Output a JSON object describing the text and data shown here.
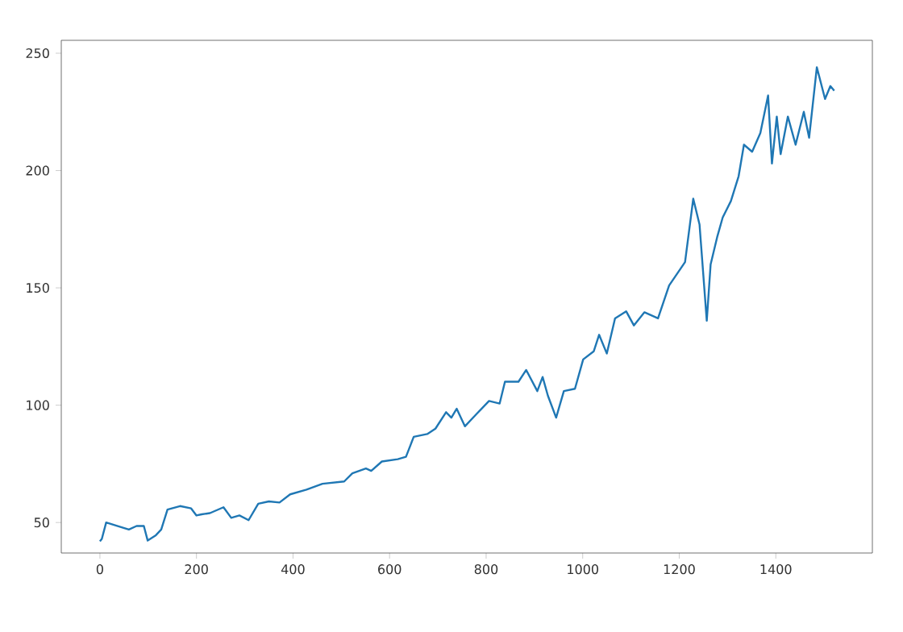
{
  "chart_data": {
    "type": "line",
    "color": "#1f77b4",
    "x": [
      0,
      4,
      13,
      37,
      60,
      76,
      91,
      99,
      116,
      127,
      140,
      166,
      189,
      200,
      211,
      228,
      256,
      272,
      289,
      308,
      328,
      350,
      372,
      394,
      428,
      461,
      506,
      523,
      551,
      562,
      584,
      617,
      634,
      650,
      678,
      695,
      717,
      728,
      739,
      756,
      779,
      806,
      828,
      839,
      867,
      883,
      906,
      917,
      928,
      945,
      961,
      984,
      1001,
      1023,
      1034,
      1050,
      1067,
      1090,
      1106,
      1128,
      1156,
      1179,
      1212,
      1229,
      1242,
      1257,
      1265,
      1279,
      1290,
      1307,
      1323,
      1334,
      1351,
      1368,
      1384,
      1392,
      1402,
      1410,
      1425,
      1441,
      1458,
      1469,
      1485,
      1502,
      1513,
      1521
    ],
    "values": [
      42,
      43,
      50,
      48.5,
      47,
      48.5,
      48.5,
      42.3,
      44.6,
      47,
      55.5,
      57,
      56,
      53,
      53.5,
      54,
      56.5,
      52,
      53,
      51,
      58,
      59,
      58.5,
      62,
      64,
      66.5,
      67.5,
      71,
      73,
      72,
      76,
      77,
      78,
      86.5,
      87.7,
      90,
      97,
      94.7,
      98.5,
      91,
      96,
      101.8,
      100.7,
      110,
      110,
      115,
      106,
      112,
      104,
      94.7,
      106,
      107,
      119.5,
      123,
      130,
      122,
      137,
      140,
      134,
      139.6,
      137,
      151,
      161,
      188,
      177,
      136,
      160,
      172,
      180,
      187,
      197.6,
      211,
      208,
      216,
      232,
      203,
      223,
      207,
      223,
      211,
      225,
      214,
      244,
      230.5,
      236,
      234
    ],
    "xlim": [
      -80,
      1600
    ],
    "ylim": [
      37,
      255.5
    ],
    "xticks": [
      0,
      200,
      400,
      600,
      800,
      1000,
      1200,
      1400
    ],
    "yticks": [
      50,
      100,
      150,
      200,
      250
    ],
    "line_style": "solid"
  }
}
